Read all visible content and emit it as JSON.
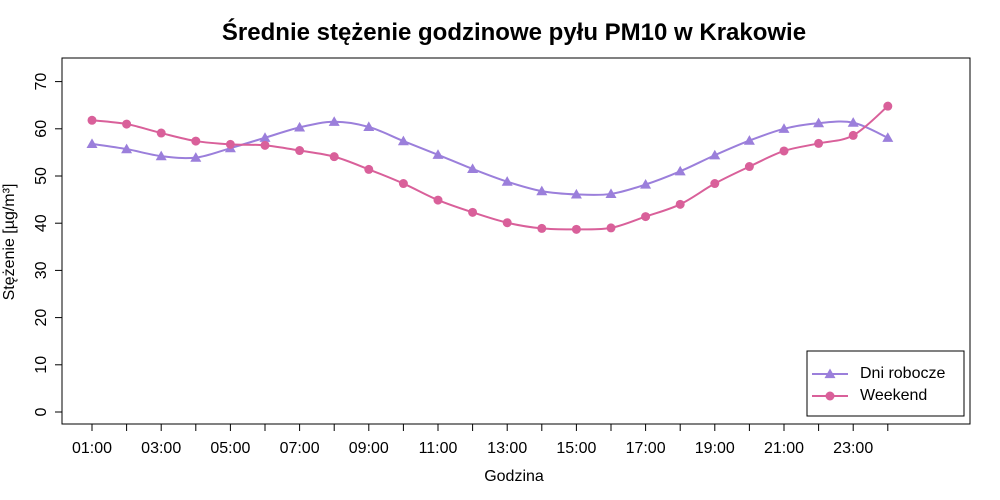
{
  "chart_data": {
    "type": "line",
    "title": "Średnie stężenie godzinowe pyłu PM10 w Krakowie",
    "xlabel": "Godzina",
    "ylabel": "Stężenie [µg/m³]",
    "x": [
      "01:00",
      "02:00",
      "03:00",
      "04:00",
      "05:00",
      "06:00",
      "07:00",
      "08:00",
      "09:00",
      "10:00",
      "11:00",
      "12:00",
      "13:00",
      "14:00",
      "15:00",
      "16:00",
      "17:00",
      "18:00",
      "19:00",
      "20:00",
      "21:00",
      "22:00",
      "23:00",
      "24:00"
    ],
    "x_tick_labels": [
      "01:00",
      "03:00",
      "05:00",
      "07:00",
      "09:00",
      "11:00",
      "13:00",
      "15:00",
      "17:00",
      "19:00",
      "21:00",
      "23:00"
    ],
    "y_ticks": [
      0,
      10,
      20,
      30,
      40,
      50,
      60,
      70
    ],
    "ylim": [
      0,
      70
    ],
    "grid": false,
    "legend_position": "bottom-right",
    "series": [
      {
        "name": "Dni robocze",
        "color": "#9b7fdb",
        "marker": "triangle",
        "values": [
          56.8,
          55.7,
          54.2,
          53.9,
          55.9,
          58.1,
          60.3,
          61.5,
          60.4,
          57.4,
          54.5,
          51.5,
          48.8,
          46.8,
          46.1,
          46.2,
          48.2,
          51.0,
          54.4,
          57.5,
          60.0,
          61.2,
          61.3,
          58.1
        ]
      },
      {
        "name": "Weekend",
        "color": "#d9609a",
        "marker": "circle",
        "values": [
          61.8,
          61.0,
          59.1,
          57.4,
          56.7,
          56.5,
          55.4,
          54.1,
          51.4,
          48.4,
          44.9,
          42.3,
          40.1,
          38.9,
          38.7,
          39.0,
          41.4,
          44.0,
          48.4,
          52.0,
          55.3,
          56.9,
          58.6,
          64.8
        ]
      }
    ]
  }
}
